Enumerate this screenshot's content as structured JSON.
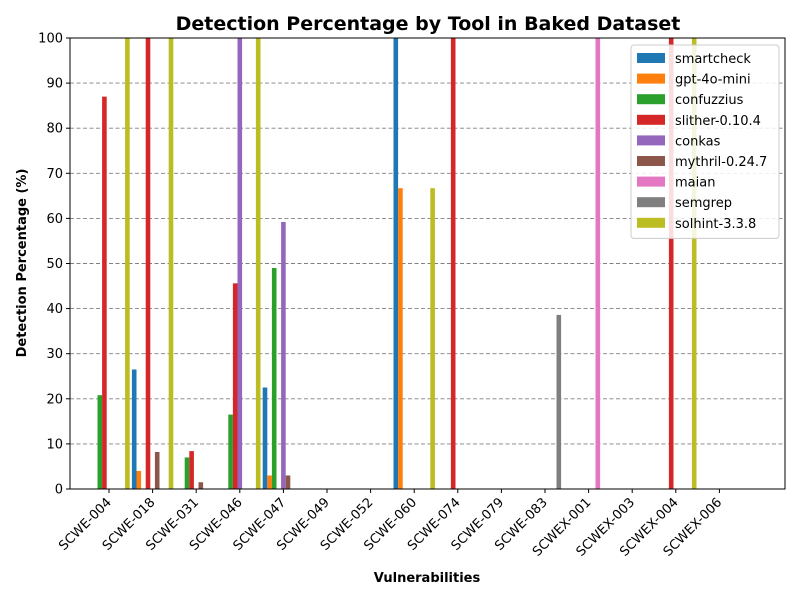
{
  "chart_data": {
    "type": "bar",
    "title": "Detection Percentage by Tool in Baked Dataset",
    "xlabel": "Vulnerabilities",
    "ylabel": "Detection Percentage (%)",
    "ylim": [
      0,
      100
    ],
    "yticks": [
      0,
      10,
      20,
      30,
      40,
      50,
      60,
      70,
      80,
      90,
      100
    ],
    "grid": "y-dashed",
    "legend_position": "top-right",
    "categories": [
      "SCWE-004",
      "SCWE-018",
      "SCWE-031",
      "SCWE-046",
      "SCWE-047",
      "SCWE-049",
      "SCWE-052",
      "SCWE-060",
      "SCWE-074",
      "SCWE-079",
      "SCWE-083",
      "SCWEX-001",
      "SCWEX-003",
      "SCWEX-004",
      "SCWEX-006"
    ],
    "series": [
      {
        "name": "smartcheck",
        "color": "#1f77b4",
        "values": [
          0,
          26.5,
          0,
          0,
          22.5,
          0,
          0,
          100,
          0,
          0,
          0,
          0,
          0,
          0,
          0
        ]
      },
      {
        "name": "gpt-4o-mini",
        "color": "#ff7f0e",
        "values": [
          0,
          4,
          0,
          0,
          3,
          0,
          0,
          66.7,
          0,
          0,
          0,
          0,
          0,
          0,
          0
        ]
      },
      {
        "name": "confuzzius",
        "color": "#2ca02c",
        "values": [
          20.8,
          0,
          7,
          16.5,
          49,
          0,
          0,
          0,
          0,
          0,
          0,
          0,
          0,
          0,
          0
        ]
      },
      {
        "name": "slither-0.10.4",
        "color": "#d62728",
        "values": [
          87,
          100,
          8.4,
          45.6,
          0,
          0,
          0,
          0,
          100,
          0,
          0,
          0,
          0,
          100,
          0
        ]
      },
      {
        "name": "conkas",
        "color": "#9467bd",
        "values": [
          0,
          0,
          0,
          100,
          59.2,
          0,
          0,
          0,
          0,
          0,
          0,
          0,
          0,
          0,
          0
        ]
      },
      {
        "name": "mythril-0.24.7",
        "color": "#8c564b",
        "values": [
          0,
          8.2,
          1.5,
          0,
          3,
          0,
          0,
          0,
          0,
          0,
          0,
          0,
          0,
          0,
          0
        ]
      },
      {
        "name": "maian",
        "color": "#e377c2",
        "values": [
          0,
          0,
          0,
          0,
          0,
          0,
          0,
          0,
          0,
          0,
          0,
          100,
          0,
          0,
          0
        ]
      },
      {
        "name": "semgrep",
        "color": "#7f7f7f",
        "values": [
          0,
          0,
          0,
          0,
          0,
          0,
          0,
          0,
          0,
          0,
          38.6,
          0,
          0,
          0,
          0
        ]
      },
      {
        "name": "solhint-3.3.8",
        "color": "#bcbd22",
        "values": [
          100,
          100,
          0,
          100,
          0,
          0,
          0,
          66.7,
          0,
          0,
          0,
          0,
          0,
          100,
          0
        ]
      }
    ]
  }
}
